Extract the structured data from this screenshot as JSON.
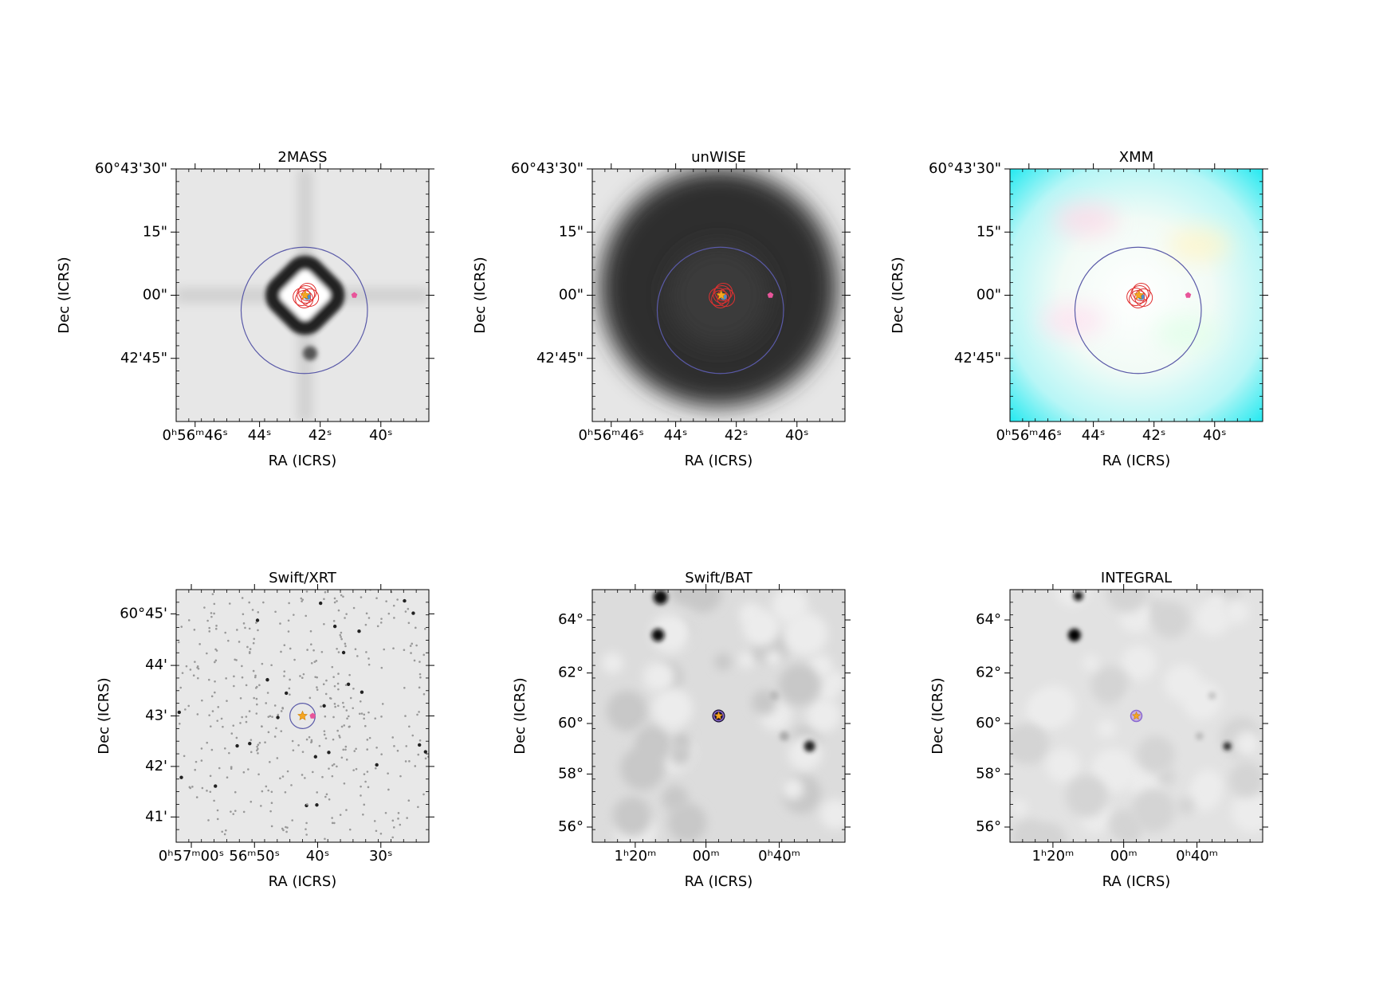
{
  "panels": [
    {
      "title": "2MASS",
      "xlabel": "RA (ICRS)",
      "ylabel": "Dec (ICRS)",
      "xticks": [
        "0ʰ56ᵐ46ˢ",
        "44ˢ",
        "42ˢ",
        "40ˢ"
      ],
      "yticks": [
        "60°43'30\"",
        "15\"",
        "00\"",
        "42'45\""
      ]
    },
    {
      "title": "unWISE",
      "xlabel": "RA (ICRS)",
      "ylabel": "Dec (ICRS)",
      "xticks": [
        "0ʰ56ᵐ46ˢ",
        "44ˢ",
        "42ˢ",
        "40ˢ"
      ],
      "yticks": [
        "60°43'30\"",
        "15\"",
        "00\"",
        "42'45\""
      ]
    },
    {
      "title": "XMM",
      "xlabel": "RA (ICRS)",
      "ylabel": "Dec (ICRS)",
      "xticks": [
        "0ʰ56ᵐ46ˢ",
        "44ˢ",
        "42ˢ",
        "40ˢ"
      ],
      "yticks": [
        "60°43'30\"",
        "15\"",
        "00\"",
        "42'45\""
      ]
    },
    {
      "title": "Swift/XRT",
      "xlabel": "RA (ICRS)",
      "ylabel": "Dec (ICRS)",
      "xticks": [
        "0ʰ57ᵐ00ˢ",
        "56ᵐ50ˢ",
        "40ˢ",
        "30ˢ"
      ],
      "yticks": [
        "60°45'",
        "44'",
        "43'",
        "42'",
        "41'"
      ]
    },
    {
      "title": "Swift/BAT",
      "xlabel": "RA (ICRS)",
      "ylabel": "Dec (ICRS)",
      "xticks": [
        "1ʰ20ᵐ",
        "00ᵐ",
        "0ʰ40ᵐ"
      ],
      "yticks": [
        "64°",
        "62°",
        "60°",
        "58°",
        "56°"
      ]
    },
    {
      "title": "INTEGRAL",
      "xlabel": "RA (ICRS)",
      "ylabel": "Dec (ICRS)",
      "xticks": [
        "1ʰ20ᵐ",
        "00ᵐ",
        "0ʰ40ᵐ"
      ],
      "yticks": [
        "64°",
        "62°",
        "60°",
        "58°",
        "56°"
      ]
    }
  ]
}
